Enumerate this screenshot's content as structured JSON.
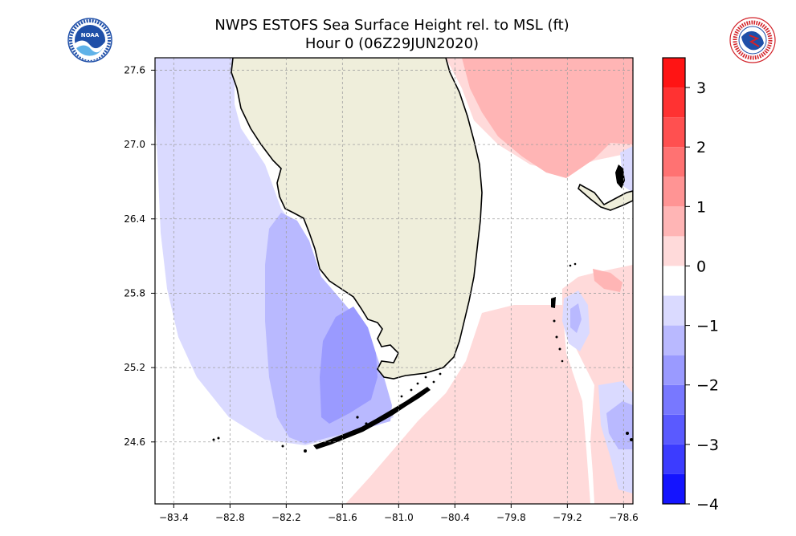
{
  "title": {
    "line1": "NWPS ESTOFS Sea Surface Height rel. to MSL (ft)",
    "line2": "Hour 0 (06Z29JUN2020)"
  },
  "logos": {
    "left": {
      "name": "noaa-logo",
      "text": "NOAA",
      "colors": {
        "blue": "#1f4fa8",
        "light": "#5fb2e8",
        "white": "#ffffff"
      }
    },
    "right": {
      "name": "nws-logo",
      "text": "NATIONAL WEATHER SERVICE",
      "colors": {
        "red": "#d2232a",
        "blue": "#1f4fa8"
      }
    }
  },
  "map": {
    "region": "South Florida",
    "lon_range": [
      -83.6,
      -78.5
    ],
    "lat_range": [
      24.1,
      27.7
    ],
    "x_ticks": [
      {
        "value": -83.4,
        "label": "−83.4"
      },
      {
        "value": -82.8,
        "label": "−82.8"
      },
      {
        "value": -82.2,
        "label": "−82.2"
      },
      {
        "value": -81.6,
        "label": "−81.6"
      },
      {
        "value": -81.0,
        "label": "−81.0"
      },
      {
        "value": -80.4,
        "label": "−80.4"
      },
      {
        "value": -79.8,
        "label": "−79.8"
      },
      {
        "value": -79.2,
        "label": "−79.2"
      },
      {
        "value": -78.6,
        "label": "−78.6"
      }
    ],
    "y_ticks": [
      {
        "value": 27.6,
        "label": "27.6"
      },
      {
        "value": 27.0,
        "label": "27.0"
      },
      {
        "value": 26.4,
        "label": "26.4"
      },
      {
        "value": 25.8,
        "label": "25.8"
      },
      {
        "value": 25.2,
        "label": "25.2"
      },
      {
        "value": 24.6,
        "label": "24.6"
      }
    ],
    "land_color": "#efeedb"
  },
  "colorbar": {
    "min": -4,
    "max": 3.5,
    "levels": [
      {
        "from": -4.0,
        "to": -3.5,
        "color": "#1414ff"
      },
      {
        "from": -3.5,
        "to": -3.0,
        "color": "#3c3cff"
      },
      {
        "from": -3.0,
        "to": -2.5,
        "color": "#5a5aff"
      },
      {
        "from": -2.5,
        "to": -2.0,
        "color": "#7878ff"
      },
      {
        "from": -2.0,
        "to": -1.5,
        "color": "#9a9aff"
      },
      {
        "from": -1.5,
        "to": -1.0,
        "color": "#b9b9ff"
      },
      {
        "from": -1.0,
        "to": -0.5,
        "color": "#dadaff"
      },
      {
        "from": -0.5,
        "to": 0.0,
        "color": "#ffffff"
      },
      {
        "from": 0.0,
        "to": 0.5,
        "color": "#ffdada"
      },
      {
        "from": 0.5,
        "to": 1.0,
        "color": "#ffb5b5"
      },
      {
        "from": 1.0,
        "to": 1.5,
        "color": "#ff9494"
      },
      {
        "from": 1.5,
        "to": 2.0,
        "color": "#ff7272"
      },
      {
        "from": 2.0,
        "to": 2.5,
        "color": "#ff5050"
      },
      {
        "from": 2.5,
        "to": 3.0,
        "color": "#ff3232"
      },
      {
        "from": 3.0,
        "to": 3.5,
        "color": "#ff1414"
      }
    ],
    "ticks": [
      {
        "value": 3,
        "label": "3"
      },
      {
        "value": 2,
        "label": "2"
      },
      {
        "value": 1,
        "label": "1"
      },
      {
        "value": 0,
        "label": "0"
      },
      {
        "value": -1,
        "label": "−1"
      },
      {
        "value": -2,
        "label": "−2"
      },
      {
        "value": -3,
        "label": "−3"
      },
      {
        "value": -4,
        "label": "−4"
      }
    ]
  }
}
